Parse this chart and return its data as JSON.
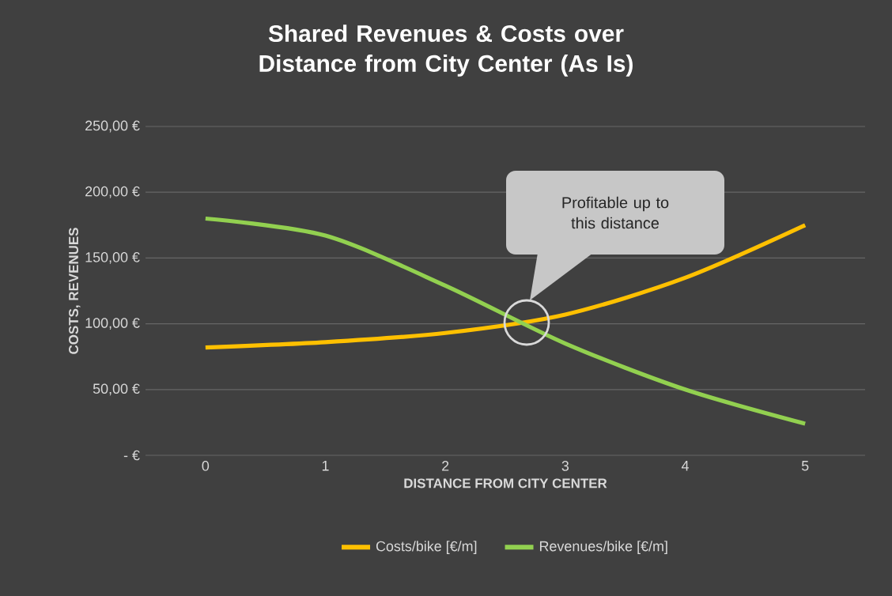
{
  "chart_data": {
    "type": "line",
    "title": "Shared Revenues & Costs over Distance from City Center (As Is)",
    "xlabel": "DISTANCE FROM CITY CENTER",
    "ylabel": "COSTS, REVENUES",
    "x": [
      0,
      1,
      2,
      3,
      4,
      5
    ],
    "xlim": [
      -0.5,
      5.5
    ],
    "xticks": [
      0,
      1,
      2,
      3,
      4,
      5
    ],
    "ylim": [
      0,
      250
    ],
    "yticks": [
      {
        "value": 0,
        "label": "-  €"
      },
      {
        "value": 50,
        "label": "50,00 €"
      },
      {
        "value": 100,
        "label": "100,00 €"
      },
      {
        "value": 150,
        "label": "150,00 €"
      },
      {
        "value": 200,
        "label": "200,00 €"
      },
      {
        "value": 250,
        "label": "250,00 €"
      }
    ],
    "series": [
      {
        "name": "Costs/bike [€/m]",
        "color": "#ffc000",
        "values": [
          82,
          86,
          93,
          107,
          135,
          175
        ]
      },
      {
        "name": "Revenues/bike [€/m]",
        "color": "#92d050",
        "values": [
          180,
          167,
          129,
          85,
          50,
          24
        ]
      }
    ],
    "annotations": [
      "Profitable up to this distance"
    ],
    "grid": "y",
    "legend": "bottom",
    "marker": "none",
    "line_style": "solid"
  }
}
